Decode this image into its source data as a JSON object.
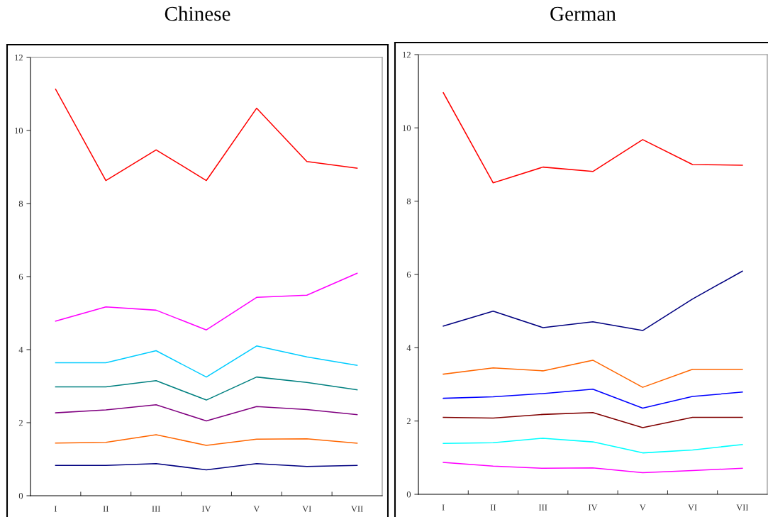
{
  "chart_data": [
    {
      "type": "line",
      "title": "Chinese",
      "categories": [
        "I",
        "II",
        "III",
        "IV",
        "V",
        "VI",
        "VII"
      ],
      "ylim": [
        0,
        12
      ],
      "yticks": [
        0,
        2,
        4,
        6,
        8,
        10,
        12
      ],
      "grid": false,
      "legend": false,
      "marker": "none",
      "line_style": "solid",
      "series": [
        {
          "color": "#ff0000",
          "values": [
            11.13,
            8.63,
            9.47,
            8.63,
            10.61,
            9.15,
            8.97
          ]
        },
        {
          "color": "#ff00ff",
          "values": [
            4.78,
            5.17,
            5.08,
            4.54,
            5.43,
            5.49,
            6.09
          ]
        },
        {
          "color": "#00ccff",
          "values": [
            3.64,
            3.64,
            3.97,
            3.25,
            4.1,
            3.8,
            3.57
          ]
        },
        {
          "color": "#008080",
          "values": [
            2.98,
            2.98,
            3.15,
            2.62,
            3.25,
            3.1,
            2.9
          ]
        },
        {
          "color": "#800080",
          "values": [
            2.27,
            2.35,
            2.49,
            2.05,
            2.44,
            2.36,
            2.22
          ]
        },
        {
          "color": "#ff6600",
          "values": [
            1.44,
            1.46,
            1.67,
            1.38,
            1.55,
            1.56,
            1.44
          ]
        },
        {
          "color": "#000080",
          "values": [
            0.83,
            0.83,
            0.88,
            0.71,
            0.88,
            0.8,
            0.83
          ]
        }
      ]
    },
    {
      "type": "line",
      "title": "German",
      "categories": [
        "I",
        "II",
        "III",
        "IV",
        "V",
        "VI",
        "VII"
      ],
      "ylim": [
        0,
        12
      ],
      "yticks": [
        0,
        2,
        4,
        6,
        8,
        10,
        12
      ],
      "grid": false,
      "legend": false,
      "marker": "none",
      "line_style": "solid",
      "series": [
        {
          "color": "#ff0000",
          "values": [
            10.96,
            8.5,
            8.93,
            8.81,
            9.68,
            9.0,
            8.98
          ]
        },
        {
          "color": "#000080",
          "values": [
            4.59,
            5.0,
            4.55,
            4.71,
            4.47,
            5.33,
            6.09
          ]
        },
        {
          "color": "#ff6600",
          "values": [
            3.28,
            3.45,
            3.37,
            3.66,
            2.92,
            3.41,
            3.41
          ]
        },
        {
          "color": "#0000ff",
          "values": [
            2.62,
            2.66,
            2.75,
            2.87,
            2.35,
            2.67,
            2.79
          ]
        },
        {
          "color": "#800000",
          "values": [
            2.1,
            2.08,
            2.18,
            2.23,
            1.82,
            2.1,
            2.1
          ]
        },
        {
          "color": "#00ffff",
          "values": [
            1.39,
            1.41,
            1.53,
            1.43,
            1.13,
            1.21,
            1.36
          ]
        },
        {
          "color": "#ff00ff",
          "values": [
            0.87,
            0.77,
            0.71,
            0.72,
            0.59,
            0.65,
            0.71
          ]
        }
      ]
    }
  ]
}
